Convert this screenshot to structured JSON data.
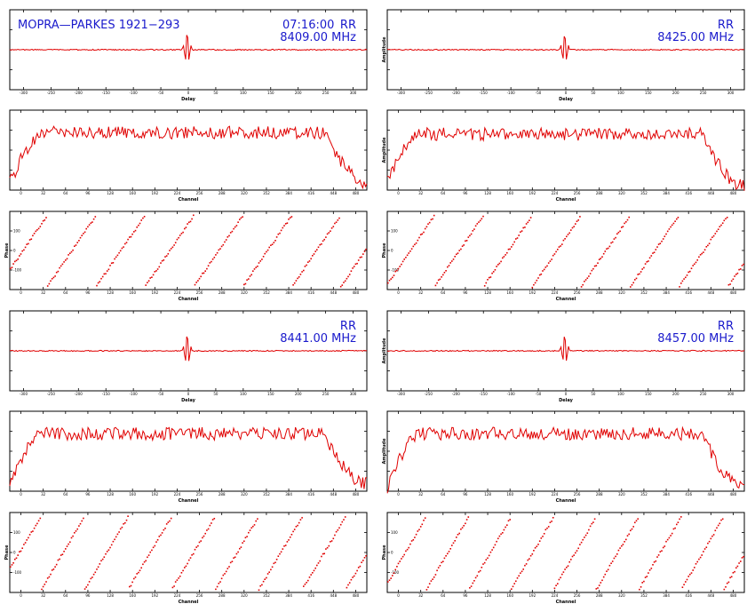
{
  "header": {
    "baseline": "MOPRA—PARKES 1921−293",
    "time": "07:16:00",
    "polarisation": "RR"
  },
  "colors": {
    "trace": "#e00000",
    "header_text": "#1a1acc",
    "frame": "#000000"
  },
  "chart_data": [
    {
      "panel": "delay-1",
      "type": "line",
      "band": "8409.00 MHz",
      "polarisation": "RR",
      "xlabel": "Delay",
      "ylabel": "",
      "xlim": [
        -320,
        320
      ],
      "ylim": [
        -1,
        1
      ],
      "xticks": [
        "-300",
        "-250",
        "-200",
        "-150",
        "-100",
        "-50",
        "0",
        "50",
        "100",
        "150",
        "200",
        "250",
        "300"
      ],
      "peak": {
        "x": -2,
        "amplitude": 0.9,
        "width": 6
      }
    },
    {
      "panel": "delay-2",
      "type": "line",
      "band": "8425.00 MHz",
      "polarisation": "RR",
      "xlabel": "Delay",
      "ylabel": "Amplitude",
      "xlim": [
        -320,
        320
      ],
      "ylim": [
        -1,
        1
      ],
      "xticks": [
        "-300",
        "-250",
        "-200",
        "-150",
        "-100",
        "-50",
        "0",
        "50",
        "100",
        "150",
        "200",
        "250",
        "300"
      ],
      "peak": {
        "x": -2,
        "amplitude": 0.85,
        "width": 6
      }
    },
    {
      "panel": "amplitude-1",
      "type": "line",
      "band": "8409.00 MHz",
      "xlabel": "Channel",
      "ylabel": "",
      "xlim": [
        0,
        512
      ],
      "ylim": [
        0,
        1
      ],
      "xticks": [
        "0",
        "32",
        "64",
        "96",
        "128",
        "160",
        "192",
        "224",
        "256",
        "288",
        "320",
        "352",
        "384",
        "416",
        "448",
        "480"
      ],
      "profile": {
        "plateau": 0.72,
        "edge_low": 0.08,
        "edge_high": 0.1
      }
    },
    {
      "panel": "amplitude-2",
      "type": "line",
      "band": "8425.00 MHz",
      "xlabel": "Channel",
      "ylabel": "Amplitude",
      "xlim": [
        0,
        512
      ],
      "ylim": [
        0,
        1
      ],
      "xticks": [
        "0",
        "32",
        "64",
        "96",
        "128",
        "160",
        "192",
        "224",
        "256",
        "288",
        "320",
        "352",
        "384",
        "416",
        "448",
        "480"
      ],
      "profile": {
        "plateau": 0.7,
        "edge_low": 0.12,
        "edge_high": 0.05
      }
    },
    {
      "panel": "phase-1",
      "type": "scatter",
      "band": "8409.00 MHz",
      "xlabel": "Channel",
      "ylabel": "Phase",
      "xlim": [
        0,
        512
      ],
      "ylim": [
        -180,
        180
      ],
      "xticks": [
        "0",
        "32",
        "64",
        "96",
        "128",
        "160",
        "192",
        "224",
        "256",
        "288",
        "320",
        "352",
        "384",
        "416",
        "448",
        "480"
      ],
      "yticks": [
        "-100",
        "0",
        "100"
      ],
      "wraps": 7.3,
      "offset": 0.25
    },
    {
      "panel": "phase-2",
      "type": "scatter",
      "band": "8425.00 MHz",
      "xlabel": "Channel",
      "ylabel": "Phase",
      "xlim": [
        0,
        512
      ],
      "ylim": [
        -180,
        180
      ],
      "xticks": [
        "0",
        "32",
        "64",
        "96",
        "128",
        "160",
        "192",
        "224",
        "256",
        "288",
        "320",
        "352",
        "384",
        "416",
        "448",
        "480"
      ],
      "yticks": [
        "-100",
        "0",
        "100"
      ],
      "wraps": 7.3,
      "offset": 0.05
    },
    {
      "panel": "delay-3",
      "type": "line",
      "band": "8441.00 MHz",
      "polarisation": "RR",
      "xlabel": "Delay",
      "ylabel": "",
      "xlim": [
        -320,
        320
      ],
      "ylim": [
        -1,
        1
      ],
      "xticks": [
        "-300",
        "-250",
        "-200",
        "-150",
        "-100",
        "-50",
        "0",
        "50",
        "100",
        "150",
        "200",
        "250",
        "300"
      ],
      "peak": {
        "x": -2,
        "amplitude": 0.9,
        "width": 6
      }
    },
    {
      "panel": "delay-4",
      "type": "line",
      "band": "8457.00 MHz",
      "polarisation": "RR",
      "xlabel": "Delay",
      "ylabel": "Amplitude",
      "xlim": [
        -320,
        320
      ],
      "ylim": [
        -1,
        1
      ],
      "xticks": [
        "-300",
        "-250",
        "-200",
        "-150",
        "-100",
        "-50",
        "0",
        "50",
        "100",
        "150",
        "200",
        "250",
        "300"
      ],
      "peak": {
        "x": -2,
        "amplitude": 0.85,
        "width": 6
      }
    },
    {
      "panel": "amplitude-3",
      "type": "line",
      "band": "8441.00 MHz",
      "xlabel": "Channel",
      "ylabel": "",
      "xlim": [
        0,
        512
      ],
      "ylim": [
        0,
        1
      ],
      "xticks": [
        "0",
        "32",
        "64",
        "96",
        "128",
        "160",
        "192",
        "224",
        "256",
        "288",
        "320",
        "352",
        "384",
        "416",
        "448",
        "480"
      ],
      "profile": {
        "plateau": 0.72,
        "edge_low": 0.12,
        "edge_high": 0.1
      }
    },
    {
      "panel": "amplitude-4",
      "type": "line",
      "band": "8457.00 MHz",
      "xlabel": "Channel",
      "ylabel": "Amplitude",
      "xlim": [
        0,
        512
      ],
      "ylim": [
        0,
        1
      ],
      "xticks": [
        "0",
        "32",
        "64",
        "96",
        "128",
        "160",
        "192",
        "224",
        "256",
        "288",
        "320",
        "352",
        "384",
        "416",
        "448",
        "480"
      ],
      "profile": {
        "plateau": 0.72,
        "edge_low": 0.05,
        "edge_high": 0.05
      }
    },
    {
      "panel": "phase-3",
      "type": "scatter",
      "band": "8441.00 MHz",
      "xlabel": "Channel",
      "ylabel": "Phase",
      "xlim": [
        0,
        512
      ],
      "ylim": [
        -180,
        180
      ],
      "xticks": [
        "0",
        "32",
        "64",
        "96",
        "128",
        "160",
        "192",
        "224",
        "256",
        "288",
        "320",
        "352",
        "384",
        "416",
        "448",
        "480"
      ],
      "yticks": [
        "-100",
        "0",
        "100"
      ],
      "wraps": 8.2,
      "offset": 0.3
    },
    {
      "panel": "phase-4",
      "type": "scatter",
      "band": "8457.00 MHz",
      "xlabel": "Channel",
      "ylabel": "Phase",
      "xlim": [
        0,
        512
      ],
      "ylim": [
        -180,
        180
      ],
      "xticks": [
        "0",
        "32",
        "64",
        "96",
        "128",
        "160",
        "192",
        "224",
        "256",
        "288",
        "320",
        "352",
        "384",
        "416",
        "448",
        "480"
      ],
      "yticks": [
        "-100",
        "0",
        "100"
      ],
      "wraps": 8.4,
      "offset": 0.1
    }
  ]
}
